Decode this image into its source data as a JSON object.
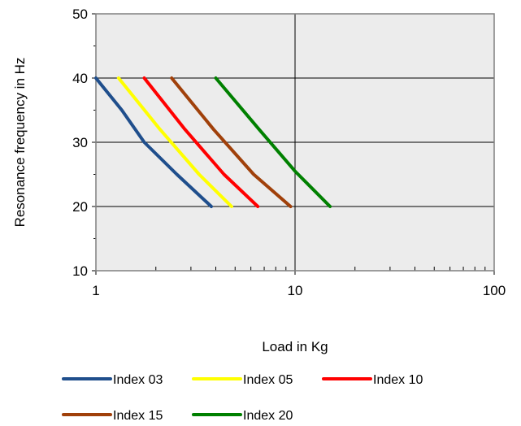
{
  "chart_data": {
    "type": "line",
    "title": "",
    "xlabel": "Load in Kg",
    "ylabel": "Resonance frequency in Hz",
    "xscale": "log",
    "xlim": [
      1,
      100
    ],
    "ylim": [
      10,
      50
    ],
    "x_ticks": [
      1,
      10,
      100
    ],
    "x_tick_labels": [
      "1",
      "10",
      "100"
    ],
    "y_ticks": [
      10,
      20,
      30,
      40,
      50
    ],
    "y_tick_labels": [
      "10",
      "20",
      "30",
      "40",
      "50"
    ],
    "grid": true,
    "legend_position": "bottom",
    "plot_background": "#ececec",
    "series": [
      {
        "name": "Index 03",
        "color": "#1f4e8c",
        "points": [
          [
            1.0,
            40
          ],
          [
            1.35,
            35
          ],
          [
            1.75,
            30
          ],
          [
            2.55,
            25
          ],
          [
            3.8,
            20
          ]
        ]
      },
      {
        "name": "Index 05",
        "color": "#ffff00",
        "points": [
          [
            1.3,
            40
          ],
          [
            2.1,
            32
          ],
          [
            3.3,
            25
          ],
          [
            4.8,
            20
          ]
        ]
      },
      {
        "name": "Index 10",
        "color": "#ff0000",
        "points": [
          [
            1.75,
            40
          ],
          [
            2.8,
            32
          ],
          [
            4.4,
            25
          ],
          [
            6.5,
            20
          ]
        ]
      },
      {
        "name": "Index 15",
        "color": "#a0400a",
        "points": [
          [
            2.4,
            40
          ],
          [
            3.9,
            32
          ],
          [
            6.2,
            25
          ],
          [
            9.5,
            20
          ]
        ]
      },
      {
        "name": "Index 20",
        "color": "#008000",
        "points": [
          [
            4.0,
            40
          ],
          [
            6.6,
            32
          ],
          [
            10.0,
            25.5
          ],
          [
            15.0,
            20
          ]
        ]
      }
    ]
  }
}
